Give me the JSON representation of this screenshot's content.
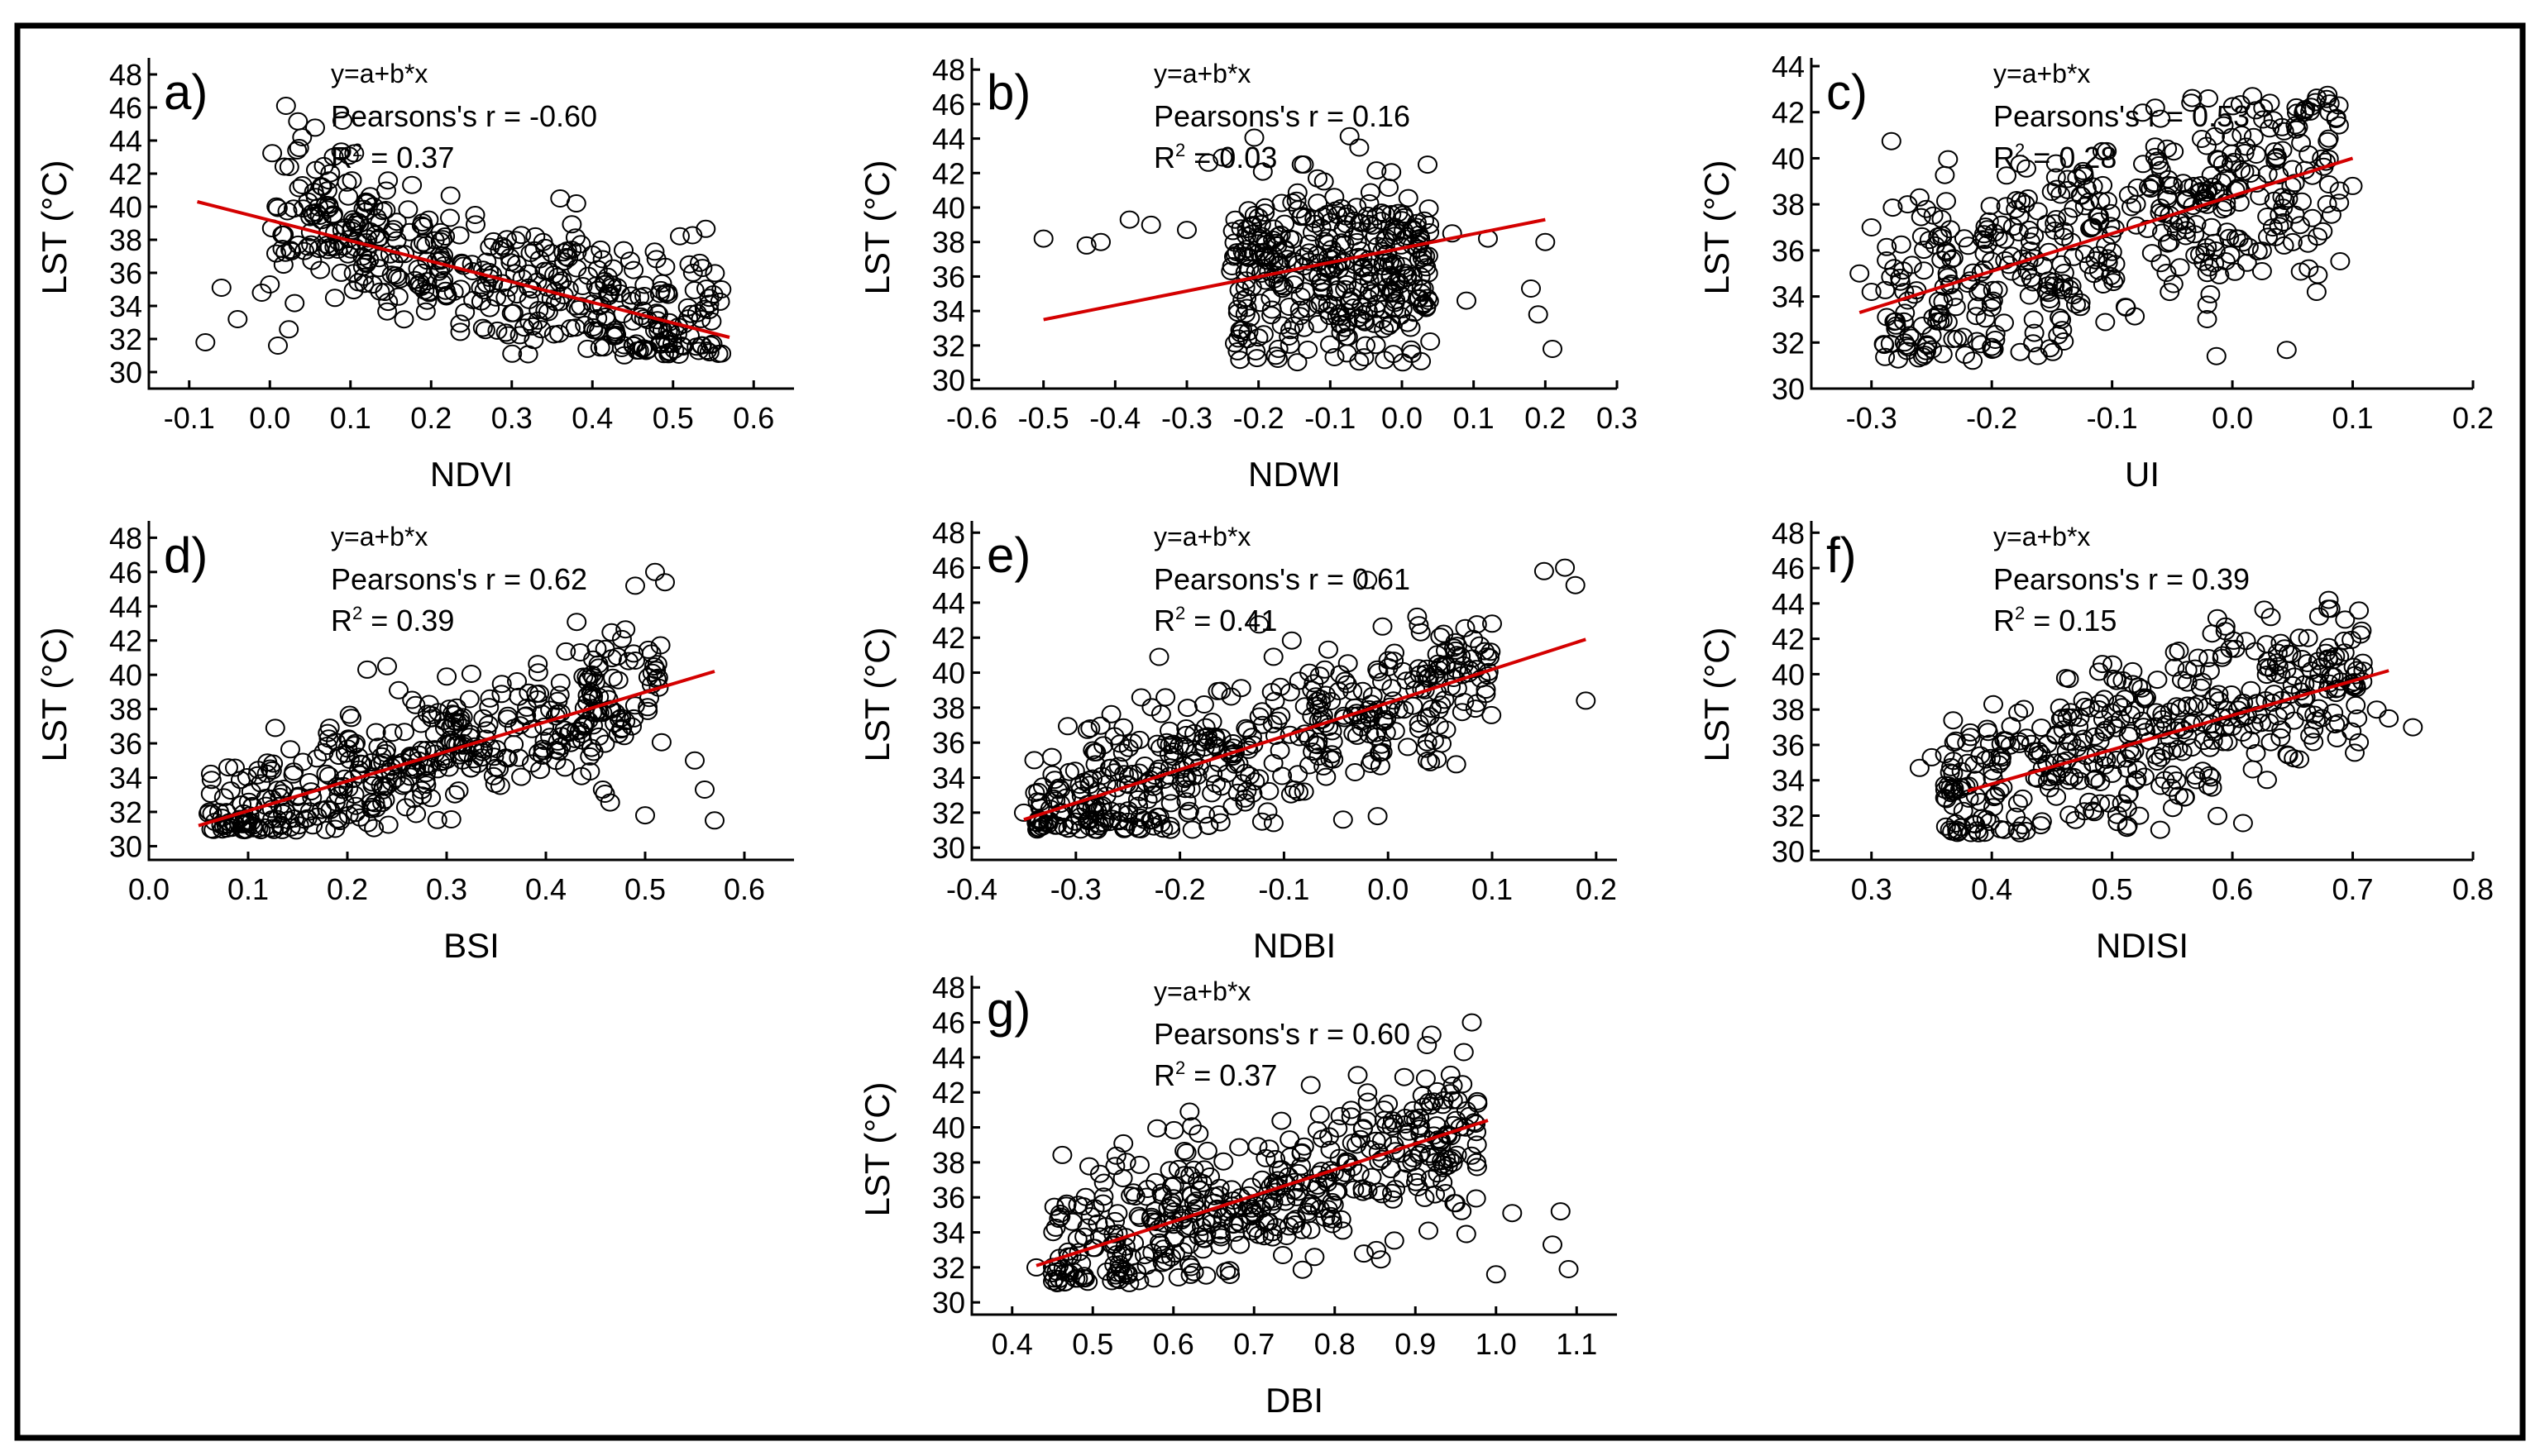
{
  "figure": {
    "frame_color": "#000000",
    "trend_color": "#d40000",
    "marker_color": "#000000"
  },
  "chart_data": [
    {
      "id": "a",
      "type": "scatter",
      "panel_label": "a)",
      "xlabel": "NDVI",
      "ylabel": "LST (°C)",
      "xlim": [
        -0.15,
        0.65
      ],
      "ylim": [
        29,
        48.5
      ],
      "xticks": [
        -0.1,
        0.0,
        0.1,
        0.2,
        0.3,
        0.4,
        0.5,
        0.6
      ],
      "yticks": [
        30,
        32,
        34,
        36,
        38,
        40,
        42,
        44,
        46,
        48
      ],
      "annotation": {
        "eq": "y=a+b*x",
        "r": "Pearsons's r = -0.60",
        "r2_prefix": "R",
        "r2_suffix": " = 0.37"
      },
      "trend": {
        "x": [
          -0.09,
          0.57
        ],
        "y": [
          40.3,
          32.1
        ]
      },
      "cloud": {
        "xmin": 0.0,
        "xmax": 0.56,
        "slope": -12.4,
        "intercept": 39.2,
        "spread": 2.3,
        "count": 420,
        "ymin": 31.0,
        "ymax": 46.0,
        "outliers": [
          [
            -0.08,
            31.8
          ],
          [
            -0.06,
            35.1
          ],
          [
            -0.04,
            33.2
          ],
          [
            -0.01,
            34.8
          ],
          [
            0.0,
            35.3
          ],
          [
            0.01,
            31.6
          ],
          [
            0.02,
            46.1
          ],
          [
            0.09,
            45.2
          ],
          [
            0.36,
            40.5
          ],
          [
            0.38,
            40.2
          ],
          [
            0.55,
            34.7
          ],
          [
            0.56,
            35.0
          ],
          [
            0.04,
            44.2
          ]
        ]
      }
    },
    {
      "id": "b",
      "type": "scatter",
      "panel_label": "b)",
      "xlabel": "NDWI",
      "ylabel": "LST (°C)",
      "xlim": [
        -0.6,
        0.3
      ],
      "ylim": [
        29.5,
        48.2
      ],
      "xticks": [
        -0.6,
        -0.5,
        -0.4,
        -0.3,
        -0.2,
        -0.1,
        0.0,
        0.1,
        0.2,
        0.3
      ],
      "yticks": [
        30,
        32,
        34,
        36,
        38,
        40,
        42,
        44,
        46,
        48
      ],
      "annotation": {
        "eq": "y=a+b*x",
        "r": "Pearsons's r = 0.16",
        "r2_prefix": "R",
        "r2_suffix": " = 0.03"
      },
      "trend": {
        "x": [
          -0.5,
          0.2
        ],
        "y": [
          33.5,
          39.3
        ]
      },
      "cloud": {
        "xmin": -0.24,
        "xmax": 0.04,
        "slope": 3.0,
        "intercept": 36.8,
        "spread": 2.7,
        "count": 360,
        "ymin": 31.0,
        "ymax": 44.5,
        "outliers": [
          [
            -0.5,
            38.2
          ],
          [
            -0.44,
            37.8
          ],
          [
            -0.42,
            38.0
          ],
          [
            -0.38,
            39.3
          ],
          [
            -0.35,
            39.0
          ],
          [
            -0.3,
            38.7
          ],
          [
            -0.27,
            42.6
          ],
          [
            -0.25,
            42.9
          ],
          [
            0.07,
            38.5
          ],
          [
            0.09,
            34.6
          ],
          [
            0.12,
            38.2
          ],
          [
            0.18,
            35.3
          ],
          [
            0.19,
            33.8
          ],
          [
            0.2,
            38.0
          ],
          [
            0.21,
            31.8
          ],
          [
            -0.14,
            42.5
          ]
        ]
      }
    },
    {
      "id": "c",
      "type": "scatter",
      "panel_label": "c)",
      "xlabel": "UI",
      "ylabel": "LST (°C)",
      "xlim": [
        -0.35,
        0.2
      ],
      "ylim": [
        30,
        44
      ],
      "xticks": [
        -0.3,
        -0.2,
        -0.1,
        0.0,
        0.1,
        0.2
      ],
      "yticks": [
        30,
        32,
        34,
        36,
        38,
        40,
        42,
        44
      ],
      "annotation": {
        "eq": "y=a+b*x",
        "r": "Pearsons's r = 0.53",
        "r2_prefix": "R",
        "r2_suffix": " = 0.28"
      },
      "trend": {
        "x": [
          -0.31,
          0.1
        ],
        "y": [
          33.3,
          40.0
        ]
      },
      "cloud": {
        "xmin": -0.29,
        "xmax": 0.09,
        "slope": 17.0,
        "intercept": 38.5,
        "spread": 2.4,
        "count": 460,
        "ymin": 31.2,
        "ymax": 42.8,
        "outliers": [
          [
            -0.31,
            35.0
          ],
          [
            -0.3,
            34.2
          ],
          [
            -0.3,
            37.0
          ],
          [
            -0.27,
            38.0
          ],
          [
            -0.26,
            38.3
          ],
          [
            0.07,
            34.2
          ],
          [
            0.1,
            38.8
          ],
          [
            -0.02,
            42.6
          ]
        ]
      }
    },
    {
      "id": "d",
      "type": "scatter",
      "panel_label": "d)",
      "xlabel": "BSI",
      "ylabel": "LST (°C)",
      "xlim": [
        0.0,
        0.65
      ],
      "ylim": [
        29.2,
        48.5
      ],
      "xticks": [
        0.0,
        0.1,
        0.2,
        0.3,
        0.4,
        0.5,
        0.6
      ],
      "yticks": [
        30,
        32,
        34,
        36,
        38,
        40,
        42,
        44,
        46,
        48
      ],
      "annotation": {
        "eq": "y=a+b*x",
        "r": "Pearsons's r = 0.62",
        "r2_prefix": "R",
        "r2_suffix": " = 0.39"
      },
      "trend": {
        "x": [
          0.05,
          0.57
        ],
        "y": [
          31.2,
          40.2
        ]
      },
      "cloud": {
        "xmin": 0.06,
        "xmax": 0.52,
        "slope": 17.5,
        "intercept": 30.3,
        "spread": 2.0,
        "count": 420,
        "ymin": 30.9,
        "ymax": 46.2,
        "outliers": [
          [
            0.06,
            31.9
          ],
          [
            0.08,
            34.6
          ],
          [
            0.22,
            40.3
          ],
          [
            0.24,
            40.5
          ],
          [
            0.51,
            46.0
          ],
          [
            0.52,
            45.4
          ],
          [
            0.49,
            45.2
          ],
          [
            0.5,
            31.8
          ],
          [
            0.55,
            35.0
          ],
          [
            0.56,
            33.3
          ],
          [
            0.57,
            31.5
          ]
        ]
      }
    },
    {
      "id": "e",
      "type": "scatter",
      "panel_label": "e)",
      "xlabel": "NDBI",
      "ylabel": "LST (°C)",
      "xlim": [
        -0.4,
        0.22
      ],
      "ylim": [
        29.3,
        48.2
      ],
      "xticks": [
        -0.4,
        -0.3,
        -0.2,
        -0.1,
        0.0,
        0.1,
        0.2
      ],
      "yticks": [
        30,
        32,
        34,
        36,
        38,
        40,
        42,
        44,
        46,
        48
      ],
      "annotation": {
        "eq": "y=a+b*x",
        "r": "Pearsons's r = 0.61",
        "r2_prefix": "R",
        "r2_suffix": " = 0.41"
      },
      "trend": {
        "x": [
          -0.35,
          0.19
        ],
        "y": [
          31.6,
          41.9
        ]
      },
      "cloud": {
        "xmin": -0.34,
        "xmax": 0.1,
        "slope": 19.0,
        "intercept": 38.3,
        "spread": 2.2,
        "count": 440,
        "ymin": 31.0,
        "ymax": 45.5,
        "outliers": [
          [
            -0.35,
            32.0
          ],
          [
            -0.34,
            35.0
          ],
          [
            0.15,
            45.8
          ],
          [
            0.17,
            46.0
          ],
          [
            0.18,
            45.0
          ],
          [
            0.19,
            38.4
          ],
          [
            -0.02,
            45.3
          ],
          [
            0.1,
            42.8
          ],
          [
            -0.01,
            31.8
          ],
          [
            -0.22,
            40.9
          ]
        ]
      }
    },
    {
      "id": "f",
      "type": "scatter",
      "panel_label": "f)",
      "xlabel": "NDISI",
      "ylabel": "LST (°C)",
      "xlim": [
        0.25,
        0.8
      ],
      "ylim": [
        29.5,
        48.2
      ],
      "xticks": [
        0.3,
        0.4,
        0.5,
        0.6,
        0.7,
        0.8
      ],
      "yticks": [
        30,
        32,
        34,
        36,
        38,
        40,
        42,
        44,
        46,
        48
      ],
      "annotation": {
        "eq": "y=a+b*x",
        "r": "Pearsons's r = 0.39",
        "r2_prefix": "R",
        "r2_suffix": " = 0.15"
      },
      "trend": {
        "x": [
          0.38,
          0.73
        ],
        "y": [
          33.4,
          40.2
        ]
      },
      "cloud": {
        "xmin": 0.36,
        "xmax": 0.71,
        "slope": 20.0,
        "intercept": 26.0,
        "spread": 2.5,
        "count": 420,
        "ymin": 31.0,
        "ymax": 43.8,
        "outliers": [
          [
            0.35,
            35.3
          ],
          [
            0.34,
            34.7
          ],
          [
            0.72,
            38.0
          ],
          [
            0.73,
            37.5
          ],
          [
            0.75,
            37.0
          ],
          [
            0.68,
            44.2
          ],
          [
            0.54,
            31.2
          ]
        ]
      }
    },
    {
      "id": "g",
      "type": "scatter",
      "panel_label": "g)",
      "xlabel": "DBI",
      "ylabel": "LST (°C)",
      "xlim": [
        0.35,
        1.15
      ],
      "ylim": [
        29.3,
        48.2
      ],
      "xticks": [
        0.4,
        0.5,
        0.6,
        0.7,
        0.8,
        0.9,
        1.0,
        1.1
      ],
      "yticks": [
        30,
        32,
        34,
        36,
        38,
        40,
        42,
        44,
        46,
        48
      ],
      "annotation": {
        "eq": "y=a+b*x",
        "r": "Pearsons's r = 0.60",
        "r2_prefix": "R",
        "r2_suffix": " = 0.37"
      },
      "trend": {
        "x": [
          0.43,
          0.99
        ],
        "y": [
          32.1,
          40.4
        ]
      },
      "cloud": {
        "xmin": 0.45,
        "xmax": 0.98,
        "slope": 15.0,
        "intercept": 25.5,
        "spread": 2.1,
        "count": 440,
        "ymin": 31.0,
        "ymax": 45.5,
        "outliers": [
          [
            0.43,
            32.0
          ],
          [
            0.46,
            34.9
          ],
          [
            0.97,
            46.0
          ],
          [
            0.96,
            44.3
          ],
          [
            0.92,
            45.3
          ],
          [
            1.0,
            31.6
          ],
          [
            1.02,
            35.1
          ],
          [
            1.07,
            33.3
          ],
          [
            1.08,
            35.2
          ],
          [
            1.09,
            31.9
          ],
          [
            0.62,
            40.9
          ]
        ]
      }
    }
  ]
}
